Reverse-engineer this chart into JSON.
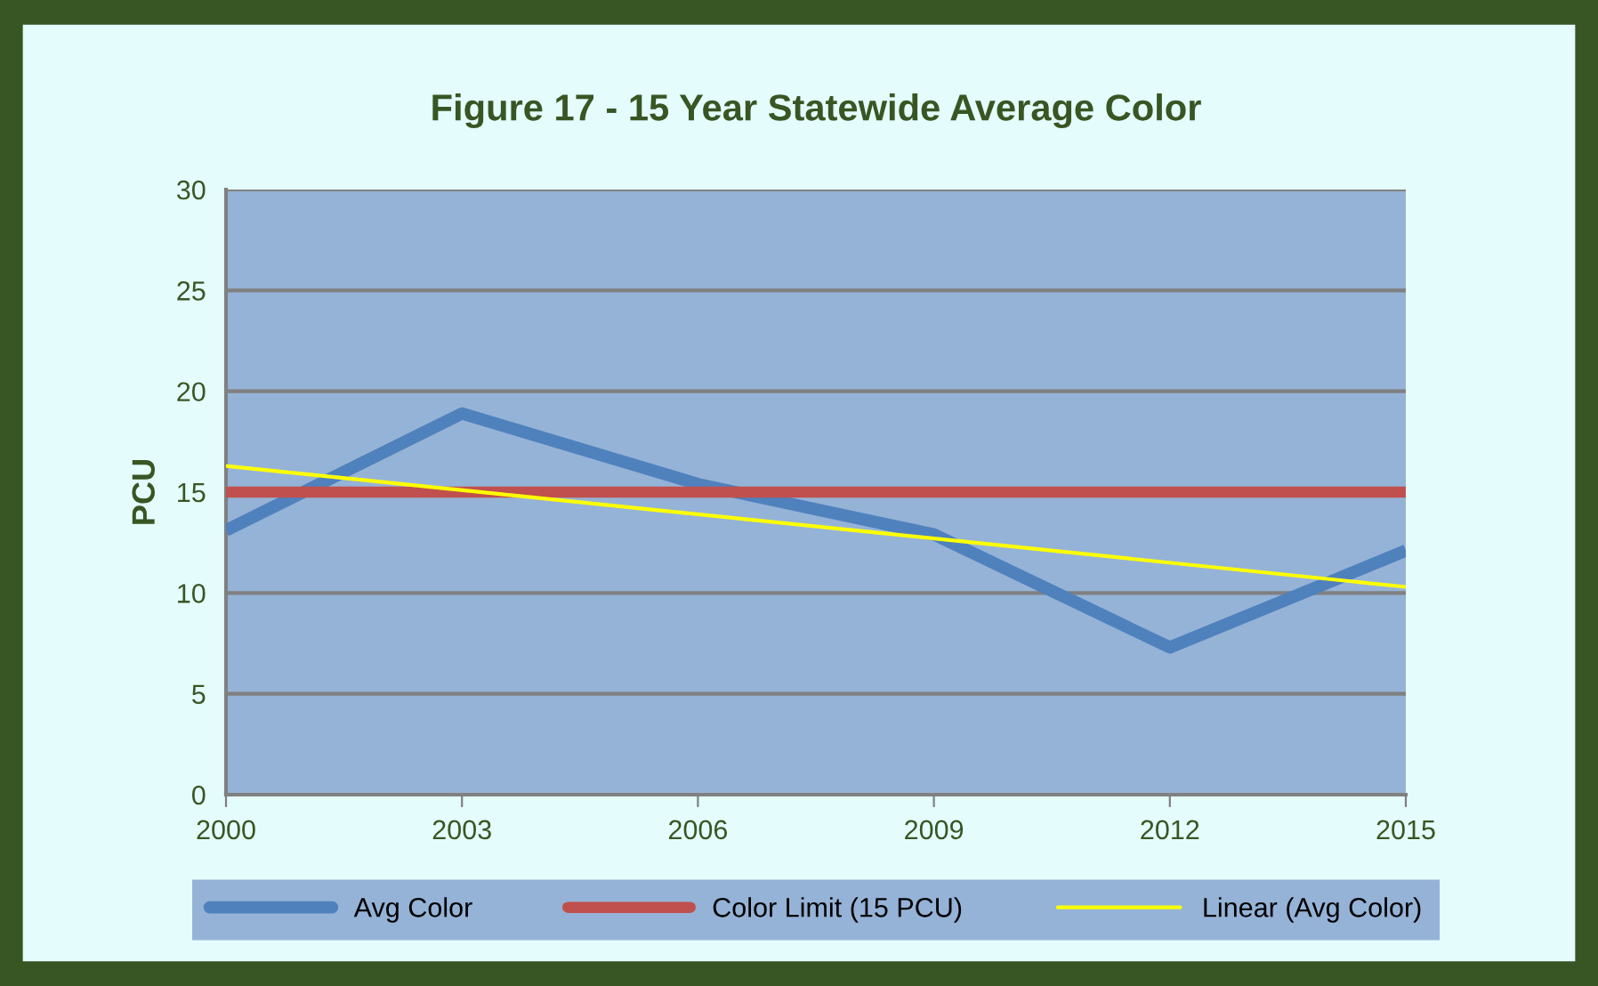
{
  "chart_data": {
    "type": "line",
    "title": "Figure 17 - 15 Year Statewide Average Color",
    "ylabel": "PCU",
    "x": [
      2000,
      2003,
      2006,
      2009,
      2012,
      2015
    ],
    "series": [
      {
        "name": "Avg Color",
        "color": "#4f81bd",
        "values": [
          13.1,
          18.9,
          15.4,
          12.9,
          7.3,
          12.1
        ]
      },
      {
        "name": "Color Limit (15 PCU)",
        "color": "#c0504d",
        "values": [
          15,
          15,
          15,
          15,
          15,
          15
        ]
      },
      {
        "name": "Linear (Avg Color)",
        "color": "#ffff00",
        "x": [
          2000,
          2015
        ],
        "values": [
          16.3,
          10.3
        ]
      }
    ],
    "xlim": [
      2000,
      2015
    ],
    "xticks": [
      2000,
      2003,
      2006,
      2009,
      2012,
      2015
    ],
    "ylim": [
      0,
      30
    ],
    "yticks": [
      0,
      5,
      10,
      15,
      20,
      25,
      30
    ],
    "grid": "y",
    "legend": "bottom",
    "marker": "none",
    "line_style": "solid"
  }
}
